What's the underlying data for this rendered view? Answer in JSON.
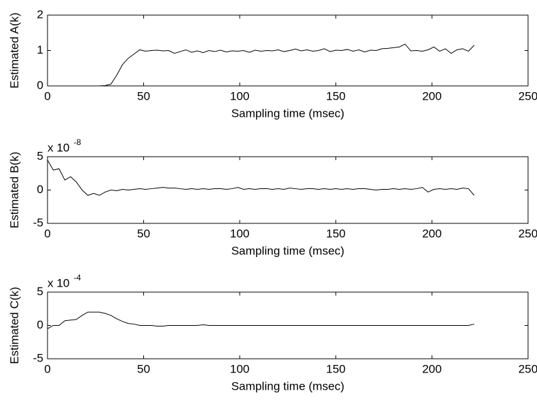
{
  "chart_data": [
    {
      "type": "line",
      "xlabel": "Sampling time (msec)",
      "ylabel": "Estimated A(k)",
      "xlim": [
        0,
        250
      ],
      "xticks": [
        0,
        50,
        100,
        150,
        200,
        250
      ],
      "ylim": [
        0,
        2
      ],
      "yticks": [
        0,
        1,
        2
      ],
      "x": [
        0,
        3,
        6,
        9,
        12,
        15,
        18,
        21,
        24,
        27,
        30,
        33,
        36,
        39,
        42,
        45,
        48,
        51,
        54,
        57,
        60,
        63,
        66,
        69,
        72,
        75,
        78,
        81,
        84,
        87,
        90,
        93,
        96,
        99,
        102,
        105,
        108,
        111,
        114,
        117,
        120,
        123,
        126,
        129,
        132,
        135,
        138,
        141,
        144,
        147,
        150,
        153,
        156,
        159,
        162,
        165,
        168,
        171,
        174,
        177,
        180,
        183,
        186,
        189,
        192,
        195,
        198,
        201,
        204,
        207,
        210,
        213,
        216,
        219,
        222
      ],
      "series": [
        {
          "color": "#000000",
          "values": [
            0,
            0,
            0,
            0,
            0,
            0,
            0,
            0,
            0,
            0,
            0.01,
            0.05,
            0.3,
            0.6,
            0.78,
            0.9,
            1.02,
            0.98,
            1,
            1.01,
            0.99,
            1,
            0.92,
            0.97,
            1.02,
            0.95,
            0.99,
            0.94,
            1,
            0.97,
            1.01,
            0.96,
            0.99,
            0.98,
            1,
            0.95,
            1.01,
            0.98,
            1,
            0.99,
            1.02,
            0.97,
            1,
            1.04,
            0.99,
            1.02,
            0.98,
            1,
            1.05,
            0.97,
            1.01,
            1,
            1.03,
            0.98,
            1.02,
            0.96,
            1.01,
            1,
            1.05,
            1.06,
            1.08,
            1.1,
            1.18,
            0.99,
            1,
            0.98,
            1.02,
            1.1,
            0.98,
            1.05,
            0.92,
            1.02,
            1.05,
            0.98,
            1.15
          ]
        }
      ]
    },
    {
      "type": "line",
      "xlabel": "Sampling time (msec)",
      "ylabel": "Estimated B(k)",
      "scale_label": {
        "base": "x 10",
        "exponent": "-8"
      },
      "xlim": [
        0,
        250
      ],
      "xticks": [
        0,
        50,
        100,
        150,
        200,
        250
      ],
      "ylim": [
        -5,
        5
      ],
      "yticks": [
        -5,
        0,
        5
      ],
      "x": [
        0,
        3,
        6,
        9,
        12,
        15,
        18,
        21,
        24,
        27,
        30,
        33,
        36,
        39,
        42,
        45,
        48,
        51,
        54,
        57,
        60,
        63,
        66,
        69,
        72,
        75,
        78,
        81,
        84,
        87,
        90,
        93,
        96,
        99,
        102,
        105,
        108,
        111,
        114,
        117,
        120,
        123,
        126,
        129,
        132,
        135,
        138,
        141,
        144,
        147,
        150,
        153,
        156,
        159,
        162,
        165,
        168,
        171,
        174,
        177,
        180,
        183,
        186,
        189,
        192,
        195,
        198,
        201,
        204,
        207,
        210,
        213,
        216,
        219,
        222
      ],
      "series": [
        {
          "color": "#000000",
          "values": [
            4.5,
            3,
            3.2,
            1.5,
            2,
            1.2,
            0,
            -0.8,
            -0.5,
            -0.8,
            -0.3,
            0,
            -0.1,
            0.1,
            0,
            0.1,
            0.2,
            0.1,
            0.2,
            0.3,
            0.4,
            0.3,
            0.3,
            0.2,
            0.1,
            0.2,
            0.1,
            0.2,
            0.1,
            0.2,
            0.2,
            0.1,
            0.2,
            0.4,
            0.1,
            0.2,
            0.1,
            0.2,
            0.2,
            0.1,
            0.2,
            0.1,
            0.3,
            0.2,
            0.1,
            0.2,
            0.2,
            0.1,
            0.2,
            0.1,
            0.2,
            0.1,
            0.2,
            0.1,
            0.2,
            0.2,
            0.1,
            0,
            0.1,
            0.1,
            0.2,
            0.1,
            0.2,
            0.1,
            0.2,
            0.4,
            -0.3,
            0.1,
            0.2,
            0.1,
            0.2,
            0.1,
            0.3,
            0.2,
            -0.8
          ]
        }
      ]
    },
    {
      "type": "line",
      "xlabel": "Sampling time (msec)",
      "ylabel": "Estimated C(k)",
      "scale_label": {
        "base": "x 10",
        "exponent": "-4"
      },
      "xlim": [
        0,
        250
      ],
      "xticks": [
        0,
        50,
        100,
        150,
        200,
        250
      ],
      "ylim": [
        -5,
        5
      ],
      "yticks": [
        -5,
        0,
        5
      ],
      "x": [
        0,
        3,
        6,
        9,
        12,
        15,
        18,
        21,
        24,
        27,
        30,
        33,
        36,
        39,
        42,
        45,
        48,
        51,
        54,
        57,
        60,
        63,
        66,
        69,
        72,
        75,
        78,
        81,
        84,
        87,
        90,
        93,
        96,
        99,
        102,
        105,
        108,
        111,
        114,
        117,
        120,
        123,
        126,
        129,
        132,
        135,
        138,
        141,
        144,
        147,
        150,
        153,
        156,
        159,
        162,
        165,
        168,
        171,
        174,
        177,
        180,
        183,
        186,
        189,
        192,
        195,
        198,
        201,
        204,
        207,
        210,
        213,
        216,
        219,
        222
      ],
      "series": [
        {
          "color": "#000000",
          "values": [
            -0.5,
            0,
            0,
            0.7,
            0.8,
            0.9,
            1.5,
            2,
            2,
            2,
            1.8,
            1.5,
            1,
            0.6,
            0.3,
            0.2,
            0,
            0,
            0,
            -0.1,
            -0.1,
            0,
            0,
            0,
            0,
            0,
            0,
            0.1,
            0,
            0,
            0,
            0,
            0,
            0,
            0,
            0,
            0,
            0,
            0,
            0,
            0,
            0,
            0,
            0,
            0,
            0,
            0,
            0,
            0,
            0,
            0,
            0,
            0,
            0,
            0,
            0,
            0,
            0,
            0,
            0,
            0,
            0,
            0,
            0,
            0,
            0,
            0,
            0,
            0,
            0,
            0,
            0,
            0,
            0,
            0.2
          ]
        }
      ]
    }
  ]
}
